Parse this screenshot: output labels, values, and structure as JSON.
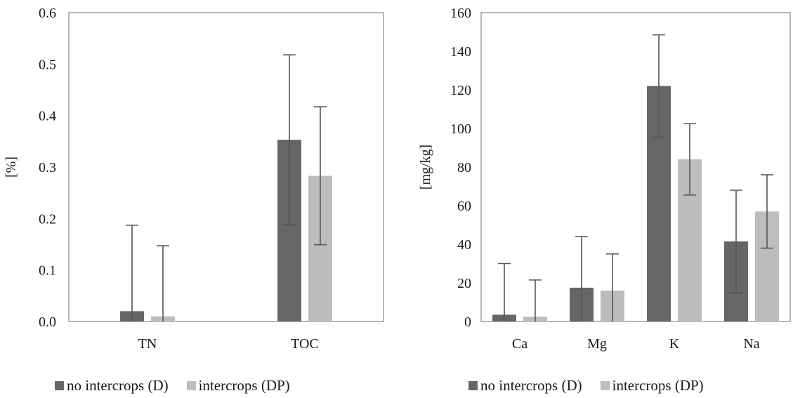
{
  "colors": {
    "D": "#666666",
    "DP": "#bdbdbd",
    "error_bar": "#555555",
    "frame": "#888888"
  },
  "chart_data": [
    {
      "type": "bar",
      "categories": [
        "TN",
        "TOC"
      ],
      "ylabel": "[%]",
      "ylim": [
        0,
        0.6
      ],
      "yticks": [
        "0.0",
        "0.1",
        "0.2",
        "0.3",
        "0.4",
        "0.5",
        "0.6"
      ],
      "grid": false,
      "legend_position": "bottom",
      "series": [
        {
          "name": "no intercrops (D)",
          "values": [
            0.02,
            0.353
          ],
          "error": [
            0.167,
            0.165
          ]
        },
        {
          "name": "intercrops (DP)",
          "values": [
            0.01,
            0.283
          ],
          "error": [
            0.137,
            0.134
          ]
        }
      ]
    },
    {
      "type": "bar",
      "categories": [
        "Ca",
        "Mg",
        "K",
        "Na"
      ],
      "ylabel": "[mg/kg]",
      "ylim": [
        0,
        160
      ],
      "yticks": [
        "0",
        "20",
        "40",
        "60",
        "80",
        "100",
        "120",
        "140",
        "160"
      ],
      "grid": false,
      "legend_position": "bottom",
      "series": [
        {
          "name": "no intercrops (D)",
          "values": [
            3.5,
            17.5,
            122,
            41.5
          ],
          "error": [
            26.5,
            26.5,
            26.5,
            26.5
          ]
        },
        {
          "name": "intercrops (DP)",
          "values": [
            2.5,
            16,
            84,
            57
          ],
          "error": [
            19,
            19,
            18.5,
            19
          ]
        }
      ]
    }
  ]
}
